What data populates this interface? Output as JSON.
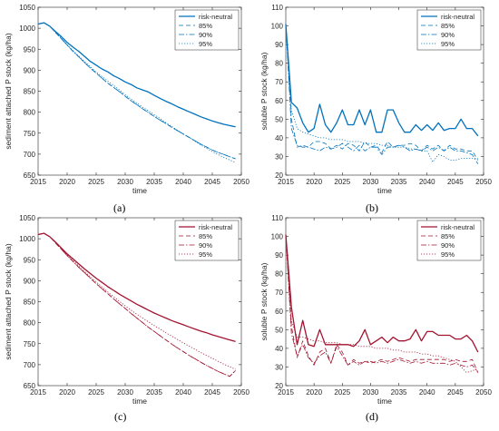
{
  "figure_captions": [
    "(a)",
    "(b)",
    "(c)",
    "(d)"
  ],
  "chart_data": [
    {
      "id": "a",
      "type": "line",
      "caption": "(a)",
      "xlabel": "time",
      "ylabel": "sediment attached P stock (kg/ha)",
      "xlim": [
        2015,
        2050
      ],
      "ylim": [
        650,
        1050
      ],
      "xticks": [
        2015,
        2020,
        2025,
        2030,
        2035,
        2040,
        2045,
        2050
      ],
      "yticks": [
        650,
        700,
        750,
        800,
        850,
        900,
        950,
        1000,
        1050
      ],
      "legend_position": "top-right",
      "color": "#0072BD",
      "grid": false,
      "x": [
        2015,
        2016,
        2017,
        2018,
        2019,
        2020,
        2021,
        2022,
        2023,
        2024,
        2025,
        2026,
        2027,
        2028,
        2029,
        2030,
        2031,
        2032,
        2033,
        2034,
        2035,
        2036,
        2037,
        2038,
        2039,
        2040,
        2041,
        2042,
        2043,
        2044,
        2045,
        2046,
        2047,
        2048,
        2049
      ],
      "series": [
        {
          "name": "risk-neutral",
          "style": "solid",
          "values": [
            1010,
            1013,
            1005,
            992,
            980,
            966,
            955,
            945,
            933,
            921,
            912,
            903,
            896,
            887,
            880,
            872,
            866,
            858,
            853,
            848,
            840,
            833,
            826,
            820,
            813,
            807,
            801,
            795,
            789,
            784,
            779,
            775,
            771,
            768,
            765
          ]
        },
        {
          "name": "85%",
          "style": "dashed",
          "values": [
            1010,
            1013,
            1005,
            990,
            975,
            960,
            945,
            932,
            918,
            905,
            893,
            881,
            869,
            859,
            849,
            838,
            827,
            818,
            808,
            799,
            790,
            781,
            773,
            764,
            756,
            748,
            740,
            732,
            724,
            717,
            710,
            704,
            699,
            694,
            689
          ]
        },
        {
          "name": "90%",
          "style": "dashdot",
          "values": [
            1010,
            1013,
            1005,
            990,
            975,
            960,
            945,
            932,
            918,
            905,
            893,
            881,
            869,
            859,
            849,
            838,
            827,
            818,
            808,
            799,
            790,
            781,
            773,
            764,
            756,
            748,
            740,
            732,
            724,
            717,
            710,
            704,
            699,
            694,
            689
          ]
        },
        {
          "name": "95%",
          "style": "dotted",
          "values": [
            1010,
            1013,
            1005,
            990,
            976,
            961,
            947,
            934,
            921,
            908,
            896,
            885,
            874,
            864,
            853,
            842,
            831,
            822,
            812,
            803,
            794,
            785,
            775,
            766,
            757,
            748,
            740,
            731,
            722,
            714,
            706,
            699,
            692,
            686,
            680
          ]
        }
      ]
    },
    {
      "id": "b",
      "type": "line",
      "caption": "(b)",
      "xlabel": "time",
      "ylabel": "soluble P stock (kg/ha)",
      "xlim": [
        2015,
        2050
      ],
      "ylim": [
        20,
        110
      ],
      "xticks": [
        2015,
        2020,
        2025,
        2030,
        2035,
        2040,
        2045,
        2050
      ],
      "yticks": [
        20,
        30,
        40,
        50,
        60,
        70,
        80,
        90,
        100,
        110
      ],
      "legend_position": "top-right",
      "color": "#0072BD",
      "grid": false,
      "x": [
        2015,
        2016,
        2017,
        2018,
        2019,
        2020,
        2021,
        2022,
        2023,
        2024,
        2025,
        2026,
        2027,
        2028,
        2029,
        2030,
        2031,
        2032,
        2033,
        2034,
        2035,
        2036,
        2037,
        2038,
        2039,
        2040,
        2041,
        2042,
        2043,
        2044,
        2045,
        2046,
        2047,
        2048,
        2049
      ],
      "series": [
        {
          "name": "risk-neutral",
          "style": "solid",
          "values": [
            101,
            59,
            56,
            48,
            43,
            45,
            58,
            47,
            43,
            48,
            55,
            47,
            47,
            55,
            47,
            55,
            43,
            43,
            55,
            55,
            48,
            43,
            43,
            47,
            44,
            47,
            44,
            48,
            44,
            45,
            45,
            50,
            45,
            45,
            41
          ]
        },
        {
          "name": "85%",
          "style": "dashed",
          "values": [
            101,
            50,
            35,
            36,
            35,
            38,
            38,
            37,
            34,
            36,
            34,
            37,
            36,
            33,
            38,
            35,
            36,
            32,
            38,
            35,
            36,
            36,
            37,
            36,
            33,
            36,
            34,
            36,
            33,
            36,
            34,
            34,
            33,
            33,
            28
          ]
        },
        {
          "name": "90%",
          "style": "dashdot",
          "values": [
            101,
            45,
            36,
            35,
            35,
            34,
            33,
            35,
            34,
            35,
            37,
            35,
            33,
            36,
            33,
            35,
            35,
            31,
            35,
            35,
            36,
            35,
            33,
            34,
            33,
            35,
            33,
            35,
            33,
            35,
            33,
            33,
            32,
            31,
            26
          ]
        },
        {
          "name": "95%",
          "style": "dotted",
          "values": [
            101,
            55,
            45,
            43,
            42,
            41,
            40,
            40,
            39,
            39,
            39,
            38,
            38,
            38,
            37,
            37,
            37,
            36,
            36,
            35,
            35,
            35,
            34,
            34,
            33,
            33,
            27,
            31,
            30,
            28,
            28,
            29,
            29,
            29,
            29
          ]
        }
      ]
    },
    {
      "id": "c",
      "type": "line",
      "caption": "(c)",
      "xlabel": "time",
      "ylabel": "sediment attached P stock (kg/ha)",
      "xlim": [
        2015,
        2050
      ],
      "ylim": [
        650,
        1050
      ],
      "xticks": [
        2015,
        2020,
        2025,
        2030,
        2035,
        2040,
        2045,
        2050
      ],
      "yticks": [
        650,
        700,
        750,
        800,
        850,
        900,
        950,
        1000,
        1050
      ],
      "legend_position": "top-right",
      "color": "#A2142F",
      "grid": false,
      "x": [
        2015,
        2016,
        2017,
        2018,
        2019,
        2020,
        2021,
        2022,
        2023,
        2024,
        2025,
        2026,
        2027,
        2028,
        2029,
        2030,
        2031,
        2032,
        2033,
        2034,
        2035,
        2036,
        2037,
        2038,
        2039,
        2040,
        2041,
        2042,
        2043,
        2044,
        2045,
        2046,
        2047,
        2048,
        2049
      ],
      "series": [
        {
          "name": "risk-neutral",
          "style": "solid",
          "values": [
            1010,
            1013,
            1005,
            992,
            978,
            964,
            952,
            940,
            928,
            917,
            906,
            896,
            886,
            877,
            868,
            860,
            852,
            844,
            837,
            830,
            823,
            817,
            811,
            805,
            800,
            795,
            790,
            785,
            780,
            776,
            771,
            767,
            763,
            759,
            755
          ]
        },
        {
          "name": "85%",
          "style": "dashed",
          "values": [
            1010,
            1013,
            1005,
            990,
            975,
            960,
            946,
            932,
            919,
            906,
            893,
            881,
            869,
            857,
            845,
            834,
            822,
            811,
            800,
            789,
            779,
            769,
            759,
            749,
            740,
            731,
            722,
            714,
            706,
            698,
            691,
            684,
            678,
            672,
            686
          ]
        },
        {
          "name": "90%",
          "style": "dashdot",
          "values": [
            1010,
            1013,
            1005,
            990,
            975,
            960,
            946,
            932,
            919,
            906,
            893,
            881,
            869,
            857,
            845,
            834,
            822,
            811,
            800,
            789,
            779,
            769,
            759,
            749,
            740,
            731,
            722,
            714,
            706,
            698,
            691,
            684,
            678,
            672,
            686
          ]
        },
        {
          "name": "95%",
          "style": "dotted",
          "values": [
            1010,
            1013,
            1005,
            991,
            977,
            962,
            948,
            935,
            922,
            909,
            897,
            885,
            873,
            862,
            851,
            840,
            830,
            820,
            811,
            802,
            793,
            785,
            776,
            768,
            760,
            752,
            744,
            737,
            729,
            722,
            715,
            708,
            701,
            695,
            689
          ]
        }
      ]
    },
    {
      "id": "d",
      "type": "line",
      "caption": "(d)",
      "xlabel": "time",
      "ylabel": "soluble P stock (kg/ha)",
      "xlim": [
        2015,
        2050
      ],
      "ylim": [
        20,
        110
      ],
      "xticks": [
        2015,
        2020,
        2025,
        2030,
        2035,
        2040,
        2045,
        2050
      ],
      "yticks": [
        20,
        30,
        40,
        50,
        60,
        70,
        80,
        90,
        100,
        110
      ],
      "legend_position": "top-right",
      "color": "#A2142F",
      "grid": false,
      "x": [
        2015,
        2016,
        2017,
        2018,
        2019,
        2020,
        2021,
        2022,
        2023,
        2024,
        2025,
        2026,
        2027,
        2028,
        2029,
        2030,
        2031,
        2032,
        2033,
        2034,
        2035,
        2036,
        2037,
        2038,
        2039,
        2040,
        2041,
        2042,
        2043,
        2044,
        2045,
        2046,
        2047,
        2048,
        2049
      ],
      "series": [
        {
          "name": "risk-neutral",
          "style": "solid",
          "values": [
            101,
            62,
            42,
            55,
            42,
            41,
            50,
            42,
            42,
            42,
            42,
            42,
            41,
            44,
            50,
            42,
            44,
            46,
            43,
            46,
            44,
            44,
            45,
            50,
            44,
            49,
            49,
            47,
            47,
            47,
            45,
            45,
            47,
            44,
            38
          ]
        },
        {
          "name": "85%",
          "style": "dashed",
          "values": [
            101,
            52,
            35,
            44,
            36,
            31,
            38,
            40,
            32,
            42,
            38,
            31,
            34,
            32,
            33,
            32,
            33,
            34,
            33,
            34,
            35,
            34,
            33,
            34,
            34,
            34,
            34,
            34,
            34,
            33,
            34,
            33,
            33,
            34,
            27
          ]
        },
        {
          "name": "90%",
          "style": "dashdot",
          "values": [
            101,
            48,
            36,
            42,
            35,
            32,
            36,
            38,
            32,
            41,
            36,
            31,
            33,
            31,
            33,
            33,
            32,
            33,
            32,
            33,
            34,
            33,
            32,
            33,
            32,
            33,
            32,
            32,
            32,
            31,
            32,
            31,
            30,
            31,
            27
          ]
        },
        {
          "name": "95%",
          "style": "dotted",
          "values": [
            101,
            55,
            46,
            46,
            45,
            44,
            44,
            43,
            43,
            43,
            42,
            42,
            42,
            41,
            41,
            41,
            40,
            40,
            40,
            39,
            39,
            38,
            38,
            38,
            37,
            37,
            36,
            36,
            35,
            34,
            33,
            30,
            27,
            28,
            29
          ]
        }
      ]
    }
  ]
}
